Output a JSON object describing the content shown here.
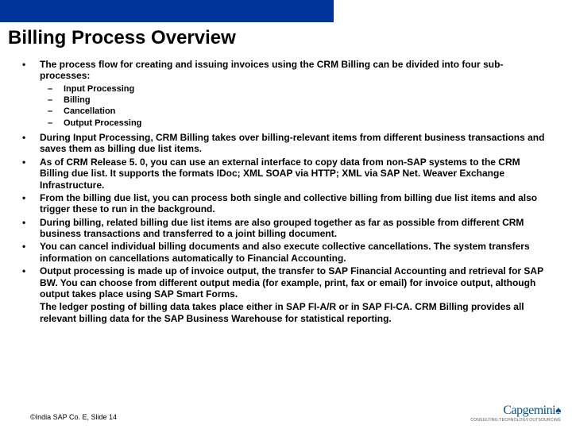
{
  "title": "Billing Process Overview",
  "bullets": {
    "b0": "The process flow for creating and issuing invoices using the CRM Billing can be divided into four sub-processes:",
    "sub0": "Input Processing",
    "sub1": "Billing",
    "sub2": "Cancellation",
    "sub3": "Output Processing",
    "b1": "During Input Processing, CRM Billing takes over billing-relevant items from different business transactions and saves them as billing due list items.",
    "b2": "As of CRM Release 5. 0, you can use an external interface to copy data from non-SAP systems to the CRM Billing due list. It supports the formats IDoc; XML SOAP via HTTP; XML via SAP Net. Weaver Exchange Infrastructure.",
    "b3": " From the billing due list, you can process both single and collective billing from billing due list items and also trigger these to run in the background.",
    "b4": "During billing, related billing due list items are also grouped together as far as possible from different CRM business transactions and transferred to a joint billing document.",
    "b5": "You can cancel individual billing documents and also execute collective cancellations. The system transfers information on cancellations automatically to Financial Accounting.",
    "b6": "Output processing is made up of invoice output, the transfer to SAP Financial Accounting and retrieval for SAP BW. You can choose from different output media (for example, print, fax or email) for invoice output, although output takes place using SAP Smart Forms.",
    "cont": "The ledger posting of billing data takes place either in SAP FI-A/R or in SAP FI-CA. CRM Billing provides all relevant billing data for the SAP Business Warehouse for statistical reporting."
  },
  "footer": "©India SAP Co. E, Slide 14",
  "logo": {
    "brand": "Capgemini",
    "tag": "CONSULTING.TECHNOLOGY.OUTSOURCING"
  }
}
